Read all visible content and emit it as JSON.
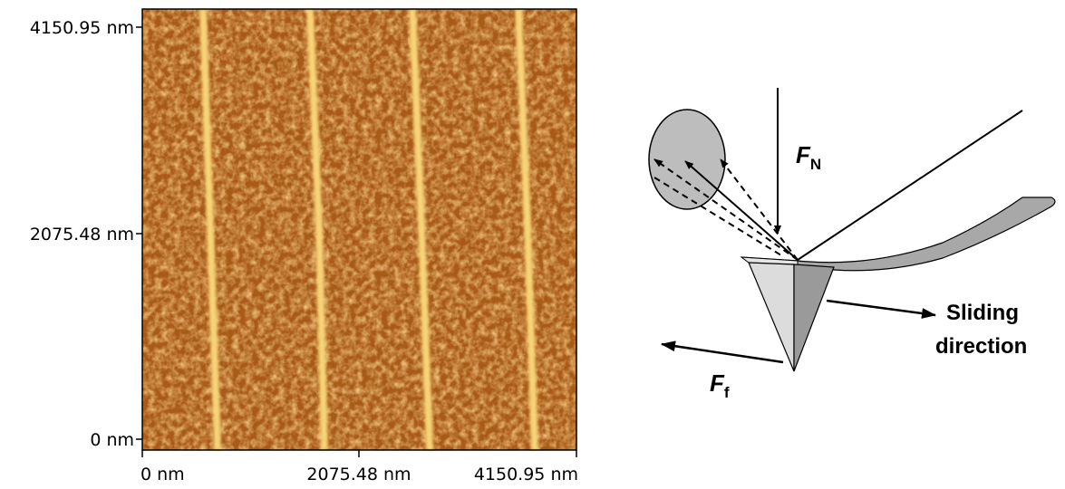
{
  "afm_image": {
    "y_axis": {
      "ticks": [
        "4150.95 nm",
        "2075.48 nm",
        "0 nm"
      ]
    },
    "x_axis": {
      "ticks": [
        "0 nm",
        "2075.48 nm",
        "4150.95 nm"
      ]
    }
  },
  "diagram": {
    "normal_force": {
      "symbol": "F",
      "subscript": "N"
    },
    "friction_force": {
      "symbol": "F",
      "subscript": "f"
    },
    "sliding_label": [
      "Sliding",
      "direction"
    ]
  }
}
